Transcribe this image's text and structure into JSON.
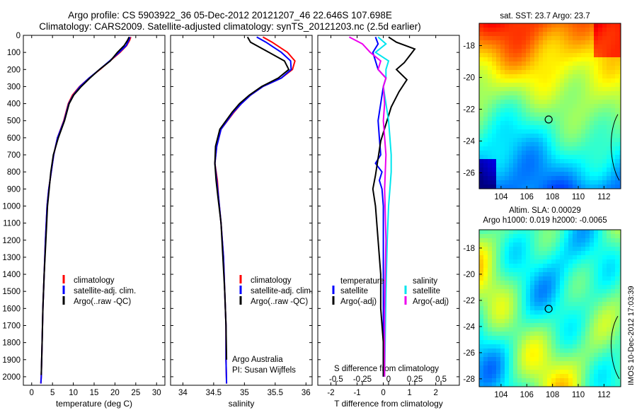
{
  "title_line1": "Argo profile: CS 5903922_36 05-Dec-2012 20121207_46 22.646S 107.698E",
  "title_line2": "Climatology: CARS2009. Satellite-adjusted climatology: synTS_20121203.nc (2.5d earlier)",
  "sst_title": "sat. SST: 23.7 Argo: 23.7",
  "sla_title1": "Altim. SLA: 0.00029",
  "sla_title2": "Argo h1000: 0.019 h2000: -0.0065",
  "vertical_label": "IMOS 10-Dec-2012 17:03:39",
  "credit_line1": "Argo Australia",
  "credit_line2": "PI: Susan Wijffels",
  "colors": {
    "climatology": "#ff0000",
    "satellite": "#0000ff",
    "argo": "#000000",
    "sat_diff": "#00e5ee",
    "argo_diff": "#ee00ee"
  },
  "chart_data": [
    {
      "type": "line",
      "xlabel": "temperature (deg C)",
      "ylabel": "",
      "xlim": [
        -2,
        32
      ],
      "ylim": [
        2050,
        0
      ],
      "xticks": [
        0,
        5,
        10,
        15,
        20,
        25,
        30
      ],
      "yticks": [
        0,
        100,
        200,
        300,
        400,
        500,
        600,
        700,
        800,
        900,
        1000,
        1100,
        1200,
        1300,
        1400,
        1500,
        1600,
        1700,
        1800,
        1900,
        2000
      ],
      "legend": [
        "climatology",
        "satellite-adj. clim.",
        "Argo(..raw -QC)"
      ],
      "series": [
        {
          "name": "climatology",
          "color": "#ff0000",
          "x": [
            23.8,
            23.5,
            22.8,
            21.2,
            18.8,
            16.4,
            13.8,
            11.5,
            9.8,
            8.8,
            7.7,
            6.2,
            5.3,
            4.7,
            4.1,
            3.7,
            3.3,
            3.0,
            2.7,
            2.5,
            2.3,
            2.2
          ],
          "y": [
            10,
            30,
            60,
            100,
            150,
            200,
            250,
            300,
            350,
            400,
            500,
            600,
            700,
            800,
            900,
            1000,
            1200,
            1400,
            1600,
            1800,
            2000,
            2040
          ]
        },
        {
          "name": "satellite-adj. clim.",
          "color": "#0000ff",
          "x": [
            23.6,
            23.3,
            22.7,
            21.0,
            18.7,
            16.3,
            13.8,
            11.6,
            10.0,
            8.9,
            7.8,
            6.2,
            5.3,
            4.7,
            4.1,
            3.7,
            3.3,
            3.0,
            2.7,
            2.5,
            2.3,
            2.2
          ],
          "y": [
            10,
            30,
            60,
            100,
            150,
            200,
            250,
            300,
            350,
            400,
            500,
            600,
            700,
            800,
            900,
            1000,
            1200,
            1400,
            1600,
            1800,
            2000,
            2040
          ]
        },
        {
          "name": "Argo(..raw -QC)",
          "color": "#000000",
          "x": [
            23.4,
            23.0,
            22.2,
            20.6,
            18.9,
            16.3,
            14.0,
            11.9,
            10.1,
            9.0,
            7.9,
            6.4,
            5.2,
            4.6,
            4.2,
            3.8,
            3.4,
            3.0,
            2.7,
            2.5,
            2.3
          ],
          "y": [
            10,
            30,
            60,
            100,
            150,
            200,
            250,
            300,
            350,
            400,
            500,
            600,
            700,
            800,
            900,
            1000,
            1200,
            1400,
            1600,
            1800,
            1990
          ]
        }
      ]
    },
    {
      "type": "line",
      "xlabel": "salinity",
      "ylabel": "",
      "xlim": [
        33.8,
        36.1
      ],
      "ylim": [
        2050,
        0
      ],
      "xticks": [
        34,
        34.5,
        35,
        35.5,
        36
      ],
      "xticklabels": [
        "34",
        "34.5",
        "35",
        "35.5",
        "36"
      ],
      "legend": [
        "climatology",
        "satellite-adj. clim.",
        "Argo(..raw -QC)"
      ],
      "series": [
        {
          "name": "climatology",
          "color": "#ff0000",
          "x": [
            35.3,
            35.45,
            35.7,
            35.82,
            35.78,
            35.6,
            35.3,
            35.1,
            34.95,
            34.83,
            34.62,
            34.55,
            34.52,
            34.56,
            34.58,
            34.62,
            34.66,
            34.68,
            34.7,
            34.7,
            34.71
          ],
          "y": [
            10,
            40,
            100,
            150,
            200,
            250,
            300,
            350,
            400,
            450,
            550,
            650,
            750,
            850,
            950,
            1100,
            1300,
            1500,
            1700,
            1900,
            2040
          ]
        },
        {
          "name": "satellite-adj. clim.",
          "color": "#0000ff",
          "x": [
            35.2,
            35.35,
            35.6,
            35.75,
            35.76,
            35.6,
            35.3,
            35.1,
            34.95,
            34.82,
            34.62,
            34.55,
            34.52,
            34.55,
            34.58,
            34.62,
            34.66,
            34.68,
            34.7,
            34.7,
            34.71
          ],
          "y": [
            10,
            40,
            100,
            150,
            200,
            250,
            300,
            350,
            400,
            450,
            550,
            650,
            750,
            850,
            950,
            1100,
            1300,
            1500,
            1700,
            1900,
            2040
          ]
        },
        {
          "name": "Argo(..raw -QC)",
          "color": "#000000",
          "x": [
            35.05,
            35.1,
            35.4,
            35.65,
            35.72,
            35.55,
            35.28,
            35.08,
            34.92,
            34.8,
            34.6,
            34.53,
            34.52,
            34.54,
            34.57,
            34.62,
            34.65,
            34.68,
            34.7,
            34.71
          ],
          "y": [
            10,
            40,
            100,
            150,
            200,
            250,
            300,
            350,
            400,
            450,
            550,
            650,
            750,
            850,
            950,
            1100,
            1300,
            1500,
            1700,
            1900
          ]
        }
      ]
    },
    {
      "type": "line",
      "xlabel": "T difference from climatology",
      "xlabel2": "S difference from climatology",
      "xlim": [
        -2.5,
        2.9
      ],
      "ylim": [
        2050,
        0
      ],
      "xticks": [
        -2,
        -1,
        0,
        1,
        2
      ],
      "xticks2": [
        -0.5,
        -0.25,
        0,
        0.25,
        0.5
      ],
      "xticklabels2": [
        "-0.5",
        "-0.25",
        "0",
        "0.25",
        "0.5"
      ],
      "legend_headers": [
        "temperature",
        "salinity"
      ],
      "legend": [
        "satellite",
        "Argo(-adj)",
        "satellite",
        "Argo(-adj)"
      ],
      "series": [
        {
          "name": "satellite",
          "color": "#0000ff",
          "x": [
            -0.3,
            -0.2,
            -0.4,
            -0.3,
            -0.2,
            0.1,
            0.0,
            -0.1,
            -0.2,
            -0.15,
            -0.1,
            -0.3,
            -0.05,
            -0.15,
            -0.05,
            0.0,
            0.0,
            0.0,
            0.0,
            0.0
          ],
          "y": [
            10,
            50,
            100,
            150,
            200,
            250,
            300,
            400,
            500,
            600,
            700,
            750,
            800,
            850,
            900,
            1000,
            1200,
            1500,
            1800,
            2000
          ]
        },
        {
          "name": "Argo(-adj)",
          "color": "#000000",
          "x": [
            0.2,
            0.5,
            1.2,
            1.0,
            0.8,
            0.5,
            0.9,
            0.6,
            0.3,
            0.1,
            -0.1,
            -0.2,
            -0.3,
            -0.4,
            -0.3,
            -0.2,
            -0.1,
            -0.1,
            0.0,
            0.0
          ],
          "y": [
            10,
            40,
            80,
            120,
            160,
            200,
            260,
            330,
            420,
            520,
            620,
            720,
            820,
            900,
            1000,
            1200,
            1400,
            1600,
            1800,
            2000
          ]
        },
        {
          "name": "satellite",
          "color": "#00e5ee",
          "x": [
            -0.2,
            0.1,
            -0.3,
            0.2,
            0.1,
            0.1,
            0.0,
            0.1,
            0.2,
            0.25,
            0.3,
            0.3,
            0.25,
            0.2,
            0.15,
            0.1,
            0.05
          ],
          "y": [
            10,
            50,
            100,
            150,
            200,
            250,
            300,
            400,
            500,
            600,
            700,
            800,
            900,
            1000,
            1200,
            1500,
            2000
          ]
        },
        {
          "name": "Argo(-adj)",
          "color": "#ee00ee",
          "x": [
            -1.3,
            -0.8,
            -0.5,
            -0.1,
            -0.2,
            0.1,
            0.0,
            0.05,
            0.0,
            0.1,
            0.05,
            0.1,
            0.05,
            0.05
          ],
          "y": [
            10,
            50,
            100,
            150,
            200,
            250,
            300,
            400,
            500,
            700,
            900,
            1200,
            1600,
            2000
          ]
        }
      ]
    },
    {
      "type": "heatmap",
      "title": "sat. SST: 23.7 Argo: 23.7",
      "xlim": [
        102.3,
        113.3
      ],
      "ylim": [
        -27.0,
        -16.6
      ],
      "xticks": [
        104,
        106,
        108,
        110,
        112
      ],
      "yticks": [
        -18,
        -20,
        -22,
        -24,
        -26
      ],
      "marker": {
        "x": 107.698,
        "y": -22.646
      }
    },
    {
      "type": "heatmap",
      "title": "Altim. SLA: 0.00029",
      "xlim": [
        102.3,
        113.3
      ],
      "ylim": [
        -28.6,
        -16.6
      ],
      "xticks": [
        104,
        106,
        108,
        110,
        112
      ],
      "yticks": [
        -18,
        -20,
        -22,
        -24,
        -26,
        -28
      ],
      "marker": {
        "x": 107.698,
        "y": -22.646
      }
    }
  ]
}
